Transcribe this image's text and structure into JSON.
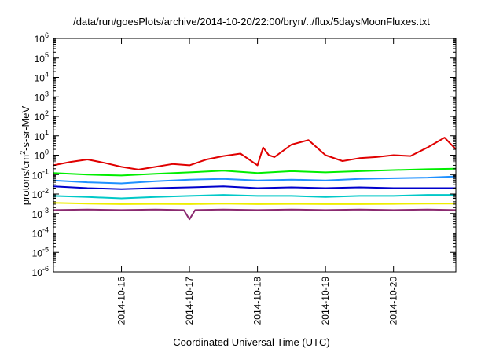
{
  "chart_data": {
    "type": "line",
    "title": "/data/run/goesPlots/archive/2014-10-20/22:00/bryn/../flux/5daysMoonFluxes.txt",
    "xlabel": "Coordinated Universal Time (UTC)",
    "ylabel": {
      "base": "protons/cm",
      "sup": "2",
      "rest": "-s-sr-MeV"
    },
    "y_scale": "log",
    "ylim": [
      1e-06,
      1000000.0
    ],
    "y_ticks": [
      {
        "base": "10",
        "exp": "6"
      },
      {
        "base": "10",
        "exp": "5"
      },
      {
        "base": "10",
        "exp": "4"
      },
      {
        "base": "10",
        "exp": "3"
      },
      {
        "base": "10",
        "exp": "2"
      },
      {
        "base": "10",
        "exp": "1"
      },
      {
        "base": "10",
        "exp": "0"
      },
      {
        "base": "10",
        "exp": "-1"
      },
      {
        "base": "10",
        "exp": "-2"
      },
      {
        "base": "10",
        "exp": "-3"
      },
      {
        "base": "10",
        "exp": "-4"
      },
      {
        "base": "10",
        "exp": "-5"
      },
      {
        "base": "10",
        "exp": "-6"
      }
    ],
    "xlim": [
      "2014-10-15T00:00",
      "2014-10-20T22:00"
    ],
    "x_ticks": [
      "2014-10-16",
      "2014-10-17",
      "2014-10-18",
      "2014-10-19",
      "2014-10-20"
    ],
    "grid": false,
    "legend": "none",
    "series": [
      {
        "color": "#e00000",
        "x": [
          "2014-10-15T00:00",
          "2014-10-15T06:00",
          "2014-10-15T12:00",
          "2014-10-15T18:00",
          "2014-10-16T00:00",
          "2014-10-16T06:00",
          "2014-10-16T12:00",
          "2014-10-16T18:00",
          "2014-10-17T00:00",
          "2014-10-17T06:00",
          "2014-10-17T12:00",
          "2014-10-17T18:00",
          "2014-10-18T00:00",
          "2014-10-18T02:00",
          "2014-10-18T04:00",
          "2014-10-18T06:00",
          "2014-10-18T12:00",
          "2014-10-18T18:00",
          "2014-10-19T00:00",
          "2014-10-19T06:00",
          "2014-10-19T12:00",
          "2014-10-19T18:00",
          "2014-10-20T00:00",
          "2014-10-20T06:00",
          "2014-10-20T12:00",
          "2014-10-20T18:00",
          "2014-10-20T22:00"
        ],
        "values": [
          0.3,
          0.45,
          0.6,
          0.4,
          0.25,
          0.18,
          0.25,
          0.35,
          0.3,
          0.6,
          0.9,
          1.2,
          0.3,
          2.5,
          1.0,
          0.8,
          3.5,
          6.0,
          1.0,
          0.5,
          0.7,
          0.8,
          1.0,
          0.9,
          2.5,
          8.0,
          2.0
        ]
      },
      {
        "color": "#00ee00",
        "x": [
          "2014-10-15T00:00",
          "2014-10-15T12:00",
          "2014-10-16T00:00",
          "2014-10-16T12:00",
          "2014-10-17T00:00",
          "2014-10-17T12:00",
          "2014-10-18T00:00",
          "2014-10-18T12:00",
          "2014-10-19T00:00",
          "2014-10-19T12:00",
          "2014-10-20T00:00",
          "2014-10-20T12:00",
          "2014-10-20T22:00"
        ],
        "values": [
          0.12,
          0.1,
          0.09,
          0.11,
          0.13,
          0.16,
          0.12,
          0.15,
          0.13,
          0.15,
          0.17,
          0.19,
          0.2
        ]
      },
      {
        "color": "#1e90ff",
        "x": [
          "2014-10-15T00:00",
          "2014-10-15T12:00",
          "2014-10-16T00:00",
          "2014-10-16T12:00",
          "2014-10-17T00:00",
          "2014-10-17T12:00",
          "2014-10-18T00:00",
          "2014-10-18T12:00",
          "2014-10-19T00:00",
          "2014-10-19T12:00",
          "2014-10-20T00:00",
          "2014-10-20T12:00",
          "2014-10-20T22:00"
        ],
        "values": [
          0.05,
          0.04,
          0.035,
          0.045,
          0.055,
          0.06,
          0.05,
          0.055,
          0.05,
          0.06,
          0.065,
          0.07,
          0.08
        ]
      },
      {
        "color": "#0000cc",
        "x": [
          "2014-10-15T00:00",
          "2014-10-15T12:00",
          "2014-10-16T00:00",
          "2014-10-16T12:00",
          "2014-10-17T00:00",
          "2014-10-17T12:00",
          "2014-10-18T00:00",
          "2014-10-18T12:00",
          "2014-10-19T00:00",
          "2014-10-19T12:00",
          "2014-10-20T00:00",
          "2014-10-20T12:00",
          "2014-10-20T22:00"
        ],
        "values": [
          0.025,
          0.02,
          0.018,
          0.02,
          0.022,
          0.025,
          0.02,
          0.022,
          0.02,
          0.022,
          0.02,
          0.02,
          0.02
        ]
      },
      {
        "color": "#00c8c8",
        "x": [
          "2014-10-15T00:00",
          "2014-10-15T12:00",
          "2014-10-16T00:00",
          "2014-10-16T12:00",
          "2014-10-17T00:00",
          "2014-10-17T12:00",
          "2014-10-18T00:00",
          "2014-10-18T12:00",
          "2014-10-19T00:00",
          "2014-10-19T12:00",
          "2014-10-20T00:00",
          "2014-10-20T12:00",
          "2014-10-20T22:00"
        ],
        "values": [
          0.008,
          0.007,
          0.006,
          0.007,
          0.008,
          0.009,
          0.008,
          0.008,
          0.007,
          0.008,
          0.008,
          0.009,
          0.009
        ]
      },
      {
        "color": "#eeee00",
        "x": [
          "2014-10-15T00:00",
          "2014-10-15T12:00",
          "2014-10-16T00:00",
          "2014-10-16T12:00",
          "2014-10-17T00:00",
          "2014-10-17T12:00",
          "2014-10-18T00:00",
          "2014-10-18T12:00",
          "2014-10-19T00:00",
          "2014-10-19T12:00",
          "2014-10-20T00:00",
          "2014-10-20T12:00",
          "2014-10-20T22:00"
        ],
        "values": [
          0.0035,
          0.0032,
          0.003,
          0.0031,
          0.003,
          0.0032,
          0.003,
          0.0031,
          0.003,
          0.003,
          0.0031,
          0.0032,
          0.0032
        ]
      },
      {
        "color": "#8b2a70",
        "x": [
          "2014-10-15T00:00",
          "2014-10-15T12:00",
          "2014-10-16T00:00",
          "2014-10-16T12:00",
          "2014-10-16T22:00",
          "2014-10-17T00:00",
          "2014-10-17T02:00",
          "2014-10-17T12:00",
          "2014-10-18T00:00",
          "2014-10-18T12:00",
          "2014-10-19T00:00",
          "2014-10-19T12:00",
          "2014-10-20T00:00",
          "2014-10-20T12:00",
          "2014-10-20T22:00"
        ],
        "values": [
          0.0015,
          0.0016,
          0.0015,
          0.0016,
          0.0015,
          0.0005,
          0.0015,
          0.0016,
          0.0015,
          0.0016,
          0.0015,
          0.0016,
          0.0015,
          0.0016,
          0.0015
        ]
      }
    ]
  }
}
